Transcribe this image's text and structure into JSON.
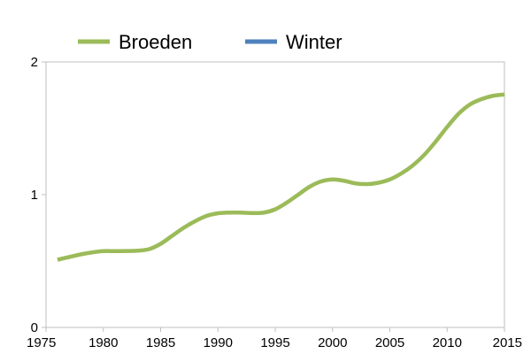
{
  "chart_data": {
    "type": "line",
    "title": "",
    "xlabel": "",
    "ylabel": "",
    "xlim": [
      1975,
      2015
    ],
    "ylim": [
      0,
      2
    ],
    "x_ticks": [
      "1975",
      "1980",
      "1985",
      "1990",
      "1995",
      "2000",
      "2005",
      "2010",
      "2015"
    ],
    "y_ticks": [
      "0",
      "1",
      "2"
    ],
    "grid": false,
    "legend_position": "top",
    "series": [
      {
        "name": "Broeden",
        "color": "#9bbb59",
        "x": [
          1976,
          1977,
          1978,
          1979,
          1980,
          1981,
          1982,
          1983,
          1984,
          1985,
          1986,
          1987,
          1988,
          1989,
          1990,
          1991,
          1992,
          1993,
          1994,
          1995,
          1996,
          1997,
          1998,
          1999,
          2000,
          2001,
          2002,
          2003,
          2004,
          2005,
          2006,
          2007,
          2008,
          2009,
          2010,
          2011,
          2012,
          2013,
          2014,
          2015
        ],
        "values": [
          0.51,
          0.53,
          0.55,
          0.565,
          0.575,
          0.575,
          0.576,
          0.578,
          0.59,
          0.63,
          0.69,
          0.75,
          0.8,
          0.84,
          0.86,
          0.865,
          0.865,
          0.862,
          0.865,
          0.89,
          0.94,
          1.0,
          1.06,
          1.1,
          1.115,
          1.105,
          1.085,
          1.08,
          1.09,
          1.115,
          1.16,
          1.22,
          1.3,
          1.4,
          1.51,
          1.61,
          1.68,
          1.72,
          1.745,
          1.755
        ]
      },
      {
        "name": "Winter",
        "color": "#4f81bd",
        "x": [],
        "values": []
      }
    ]
  }
}
